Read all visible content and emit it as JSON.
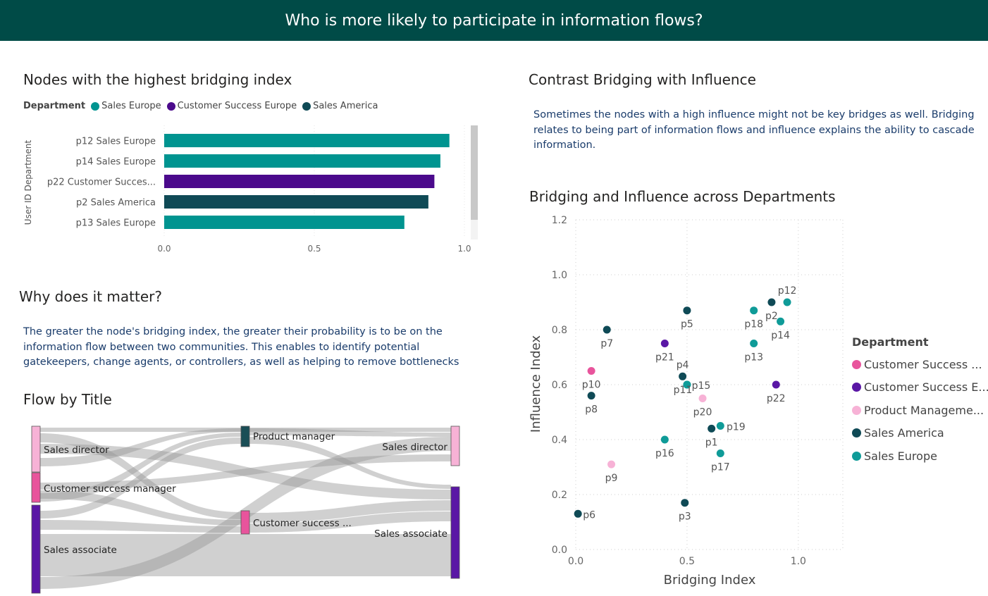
{
  "header": {
    "title": "Who is more likely to participate in information flows?"
  },
  "bar_section": {
    "title": "Nodes with the highest bridging index",
    "legend_label": "Department",
    "legend": [
      {
        "name": "Sales Europe",
        "color": "#009490"
      },
      {
        "name": "Customer Success Europe",
        "color": "#4b0a8c"
      },
      {
        "name": "Sales America",
        "color": "#0f4a56"
      }
    ]
  },
  "why": {
    "title": "Why does it matter?",
    "text": "The greater the node's bridging index, the greater their probability is to be on the information flow between two communities. This enables to identify potential gatekeepers, change agents, or controllers, as well as helping to remove bottlenecks and..."
  },
  "flow": {
    "title": "Flow by Title"
  },
  "contrast": {
    "title": "Contrast Bridging with Influence",
    "text": "Sometimes the nodes with a high influence might not be key bridges as well. Bridging relates to being part of information flows and influence explains the ability to cascade information."
  },
  "scatter_section": {
    "title": "Bridging and Influence across Departments",
    "legend_label": "Department",
    "legend": [
      {
        "name": "Customer Success ...",
        "color": "#e8549c"
      },
      {
        "name": "Customer Success E...",
        "color": "#5a17a5"
      },
      {
        "name": "Product Manageme...",
        "color": "#f7b2d6"
      },
      {
        "name": "Sales America",
        "color": "#0f4a56"
      },
      {
        "name": "Sales Europe",
        "color": "#0f9b98"
      }
    ]
  },
  "chart_data": [
    {
      "type": "bar",
      "orientation": "horizontal",
      "ylabel": "User ID Department",
      "categories": [
        "p12 Sales Europe",
        "p14 Sales Europe",
        "p22 Customer Succes...",
        "p2 Sales America",
        "p13 Sales Europe"
      ],
      "values": [
        0.95,
        0.92,
        0.9,
        0.88,
        0.8
      ],
      "colors": [
        "#009490",
        "#009490",
        "#4b0a8c",
        "#0f4a56",
        "#009490"
      ],
      "xticks": [
        "0.0",
        "0.5",
        "1.0"
      ],
      "xlim": [
        0,
        1.0
      ]
    },
    {
      "type": "sankey",
      "sources": [
        {
          "label": "Sales director",
          "color": "#f7b2d6"
        },
        {
          "label": "Customer success manager",
          "color": "#e8549c"
        },
        {
          "label": "Sales associate",
          "color": "#5a17a5"
        }
      ],
      "middle": [
        {
          "label": "Product manager",
          "color": "#1a4e56"
        },
        {
          "label": "Customer success ...",
          "color": "#e8549c"
        }
      ],
      "targets": [
        {
          "label": "Sales director",
          "color": "#f7b2d6"
        },
        {
          "label": "Sales associate",
          "color": "#5a17a5"
        }
      ]
    },
    {
      "type": "scatter",
      "xlabel": "Bridging Index",
      "ylabel": "Influence Index",
      "xlim": [
        0,
        1.2
      ],
      "ylim": [
        0,
        1.2
      ],
      "xticks": [
        "0.0",
        "0.5",
        "1.0"
      ],
      "yticks": [
        "0.0",
        "0.2",
        "0.4",
        "0.6",
        "0.8",
        "1.0",
        "1.2"
      ],
      "grid": true,
      "legend_position": "right",
      "points": [
        {
          "label": "p12",
          "x": 0.95,
          "y": 0.9,
          "dept": "Sales Europe"
        },
        {
          "label": "p2",
          "x": 0.88,
          "y": 0.9,
          "dept": "Sales America"
        },
        {
          "label": "p14",
          "x": 0.92,
          "y": 0.83,
          "dept": "Sales Europe"
        },
        {
          "label": "p18",
          "x": 0.8,
          "y": 0.87,
          "dept": "Sales Europe"
        },
        {
          "label": "p13",
          "x": 0.8,
          "y": 0.75,
          "dept": "Sales Europe"
        },
        {
          "label": "p22",
          "x": 0.9,
          "y": 0.6,
          "dept": "Customer Success Europe"
        },
        {
          "label": "p5",
          "x": 0.5,
          "y": 0.87,
          "dept": "Sales America"
        },
        {
          "label": "p7",
          "x": 0.14,
          "y": 0.8,
          "dept": "Sales America"
        },
        {
          "label": "p21",
          "x": 0.4,
          "y": 0.75,
          "dept": "Customer Success Europe"
        },
        {
          "label": "p4",
          "x": 0.48,
          "y": 0.63,
          "dept": "Sales America"
        },
        {
          "label": "p11",
          "x": 0.5,
          "y": 0.6,
          "dept": "Sales Europe"
        },
        {
          "label": "p15",
          "x": 0.5,
          "y": 0.6,
          "dept": "Sales Europe"
        },
        {
          "label": "p20",
          "x": 0.57,
          "y": 0.55,
          "dept": "Product Management"
        },
        {
          "label": "p10",
          "x": 0.07,
          "y": 0.65,
          "dept": "Customer Success"
        },
        {
          "label": "p8",
          "x": 0.07,
          "y": 0.56,
          "dept": "Sales America"
        },
        {
          "label": "p19",
          "x": 0.65,
          "y": 0.45,
          "dept": "Sales Europe"
        },
        {
          "label": "p1",
          "x": 0.61,
          "y": 0.44,
          "dept": "Sales America"
        },
        {
          "label": "p17",
          "x": 0.65,
          "y": 0.35,
          "dept": "Sales Europe"
        },
        {
          "label": "p16",
          "x": 0.4,
          "y": 0.4,
          "dept": "Sales Europe"
        },
        {
          "label": "p9",
          "x": 0.16,
          "y": 0.31,
          "dept": "Product Management"
        },
        {
          "label": "p6",
          "x": 0.01,
          "y": 0.13,
          "dept": "Sales America"
        },
        {
          "label": "p3",
          "x": 0.49,
          "y": 0.17,
          "dept": "Sales America"
        }
      ]
    }
  ]
}
